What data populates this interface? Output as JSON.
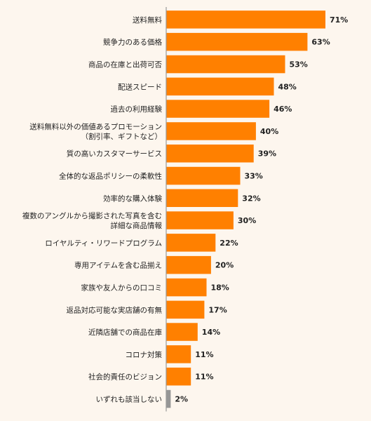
{
  "chart_data": {
    "type": "bar",
    "orientation": "horizontal",
    "title": "",
    "xlabel": "",
    "ylabel": "",
    "xlim": [
      0,
      71
    ],
    "value_suffix": "%",
    "categories": [
      [
        "送料無料"
      ],
      [
        "競争力のある価格"
      ],
      [
        "商品の在庫と出荷可否"
      ],
      [
        "配送スピード"
      ],
      [
        "過去の利用経験"
      ],
      [
        "送料無料以外の価値あるプロモーション",
        "（割引率、ギフトなど）"
      ],
      [
        "質の高いカスタマーサービス"
      ],
      [
        "全体的な返品ポリシーの柔軟性"
      ],
      [
        "効率的な購入体験"
      ],
      [
        "複数のアングルから撮影された写真を含む",
        "詳細な商品情報"
      ],
      [
        "ロイヤルティ・リワードプログラム"
      ],
      [
        "専用アイテムを含む品揃え"
      ],
      [
        "家族や友人からの口コミ"
      ],
      [
        "返品対応可能な実店舗の有無"
      ],
      [
        "近隣店舗での商品在庫"
      ],
      [
        "コロナ対策"
      ],
      [
        "社会的責任のビジョン"
      ],
      [
        "いずれも該当しない"
      ]
    ],
    "values": [
      71,
      63,
      53,
      48,
      46,
      40,
      39,
      33,
      32,
      30,
      22,
      20,
      18,
      17,
      14,
      11,
      11,
      2
    ],
    "colors": [
      "#ff8000",
      "#ff8000",
      "#ff8000",
      "#ff8000",
      "#ff8000",
      "#ff8000",
      "#ff8000",
      "#ff8000",
      "#ff8000",
      "#ff8000",
      "#ff8000",
      "#ff8000",
      "#ff8000",
      "#ff8000",
      "#ff8000",
      "#ff8000",
      "#ff8000",
      "#969696"
    ],
    "axis_color": "#999999",
    "grid": false,
    "legend": "none"
  }
}
